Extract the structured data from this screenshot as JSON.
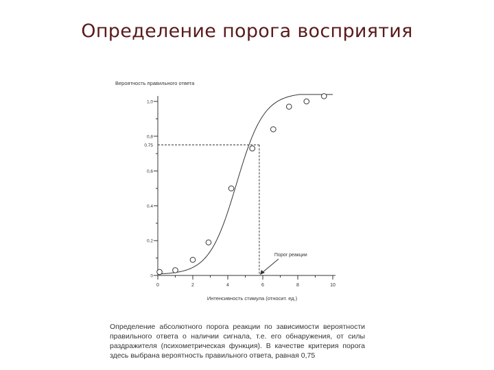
{
  "slide": {
    "title": "Определение порога восприятия"
  },
  "chart_data": {
    "type": "scatter",
    "ylabel": "Вероятность правильного ответа",
    "xlabel": "Интенсивность стимула (относит. ед.)",
    "xlim": [
      0,
      10
    ],
    "ylim": [
      0,
      1.0
    ],
    "x_ticks": [
      "0",
      "2",
      "4",
      "6",
      "8",
      "10"
    ],
    "y_ticks": [
      {
        "value": 0,
        "label": "0"
      },
      {
        "value": 0.2,
        "label": "0.2"
      },
      {
        "value": 0.4,
        "label": "0.4"
      },
      {
        "value": 0.6,
        "label": "0,6"
      },
      {
        "value": 0.75,
        "label": "0.75"
      },
      {
        "value": 0.8,
        "label": "0,8"
      },
      {
        "value": 1.0,
        "label": "1,0"
      }
    ],
    "series": [
      {
        "points": [
          {
            "x": 0.1,
            "y": 0.02
          },
          {
            "x": 1.0,
            "y": 0.03
          },
          {
            "x": 2.0,
            "y": 0.09
          },
          {
            "x": 2.9,
            "y": 0.19
          },
          {
            "x": 4.2,
            "y": 0.5
          },
          {
            "x": 5.4,
            "y": 0.73
          },
          {
            "x": 6.6,
            "y": 0.84
          },
          {
            "x": 7.5,
            "y": 0.97
          },
          {
            "x": 8.5,
            "y": 1.0
          },
          {
            "x": 9.5,
            "y": 1.03
          }
        ]
      }
    ],
    "fit_curve": {
      "type": "logistic",
      "midpoint": 4.5,
      "slope": 0.8,
      "lower": 0.005,
      "upper": 1.05
    },
    "threshold": {
      "x": 5.8,
      "y": 0.75,
      "label": "Порог реакции"
    },
    "grid": false,
    "legend": "none"
  },
  "caption": {
    "text": "Определение абсолютного порога реакции по зависимости вероятности правильного ответа о наличии сигнала, т.е. его обнаружения, от силы раздражителя (психометрическая функция). В качестве критерия порога здесь выбрана вероятность правильного ответа, равная 0,75"
  },
  "colors": {
    "title": "#5a1a1a",
    "ink": "#333333"
  }
}
